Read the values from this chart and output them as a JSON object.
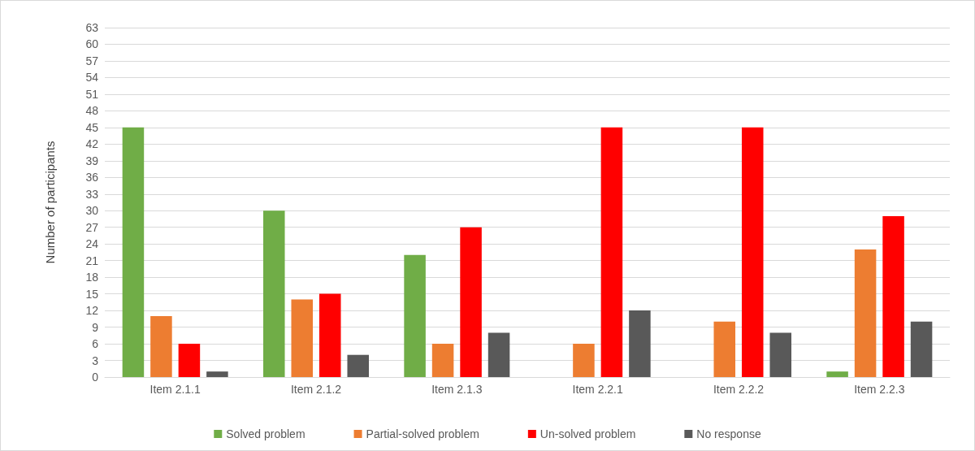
{
  "chart_data": {
    "type": "bar",
    "ylabel": "Number of participants",
    "categories": [
      "Item 2.1.1",
      "Item 2.1.2",
      "Item 2.1.3",
      "Item 2.2.1",
      "Item 2.2.2",
      "Item 2.2.3"
    ],
    "series": [
      {
        "name": "Solved problem",
        "color": "#70ad47",
        "values": [
          45,
          30,
          22,
          0,
          0,
          1
        ]
      },
      {
        "name": "Partial-solved problem",
        "color": "#ed7d31",
        "values": [
          11,
          14,
          6,
          6,
          10,
          23
        ]
      },
      {
        "name": "Un-solved problem",
        "color": "#ff0000",
        "values": [
          6,
          15,
          27,
          45,
          45,
          29
        ]
      },
      {
        "name": "No response",
        "color": "#595959",
        "values": [
          1,
          4,
          8,
          12,
          8,
          10
        ]
      }
    ],
    "ylim": [
      0,
      63
    ],
    "yticks": [
      0,
      3,
      6,
      9,
      12,
      15,
      18,
      21,
      24,
      27,
      30,
      33,
      36,
      39,
      42,
      45,
      48,
      51,
      54,
      57,
      60,
      63
    ],
    "grid": "y",
    "legend": "bottom"
  }
}
